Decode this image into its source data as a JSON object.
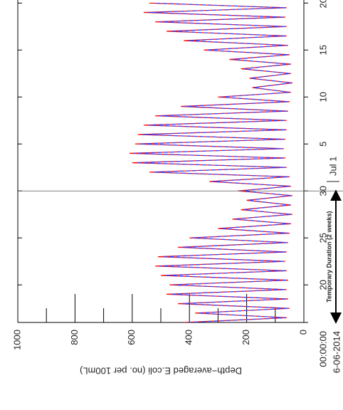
{
  "chart_data": {
    "type": "line",
    "ylabel": "Depth−averaged E.coli (no. per 100mL)",
    "x": [
      0,
      0.5,
      1,
      1.5,
      2,
      2.5,
      3,
      3.5,
      4,
      4.5,
      5,
      5.5,
      6,
      6.5,
      7,
      7.5,
      8,
      8.5,
      9,
      9.5,
      10,
      10.5,
      11,
      11.5,
      12,
      12.5,
      13,
      13.5,
      14,
      14.5,
      15,
      15.5,
      16,
      16.5,
      17,
      17.5,
      18,
      18.5,
      19,
      19.5,
      20,
      20.5,
      21,
      21.5,
      22,
      22.5,
      23,
      23.5,
      24,
      24.5,
      25,
      25.5,
      26,
      26.5,
      27,
      27.5,
      28,
      28.5,
      29,
      29.5,
      30,
      30.5,
      31,
      31.5,
      32,
      32.5,
      33,
      33.5,
      34
    ],
    "series": [
      {
        "color": "#ff0000",
        "linestyle": "solid",
        "values": [
          420,
          60,
          380,
          50,
          440,
          55,
          480,
          60,
          470,
          55,
          500,
          60,
          520,
          65,
          510,
          60,
          440,
          55,
          400,
          50,
          300,
          45,
          250,
          40,
          220,
          45,
          200,
          40,
          230,
          45,
          330,
          50,
          540,
          60,
          600,
          65,
          610,
          70,
          590,
          65,
          580,
          60,
          560,
          60,
          520,
          55,
          430,
          50,
          300,
          45,
          180,
          40,
          190,
          45,
          220,
          45,
          260,
          50,
          350,
          55,
          420,
          60,
          480,
          60,
          520,
          65,
          560,
          60,
          540
        ]
      },
      {
        "color": "#3344ff",
        "linestyle": "dashed",
        "values": [
          405,
          65,
          370,
          55,
          425,
          60,
          465,
          65,
          455,
          60,
          485,
          65,
          505,
          70,
          495,
          65,
          425,
          60,
          390,
          55,
          290,
          50,
          240,
          45,
          210,
          50,
          195,
          45,
          220,
          50,
          320,
          55,
          525,
          65,
          585,
          70,
          595,
          75,
          575,
          70,
          565,
          65,
          545,
          65,
          505,
          60,
          420,
          55,
          290,
          50,
          175,
          45,
          185,
          50,
          210,
          50,
          250,
          55,
          340,
          60,
          405,
          65,
          465,
          65,
          505,
          70,
          545,
          65,
          525
        ]
      }
    ],
    "xlim": [
      0,
      34.4
    ],
    "xticks": [
      {
        "value": 0,
        "label": "00:00:00"
      },
      {
        "value": 4,
        "label": "20"
      },
      {
        "value": 9,
        "label": "25"
      },
      {
        "value": 14,
        "label": "30"
      },
      {
        "value": 19,
        "label": "5"
      },
      {
        "value": 24,
        "label": "10"
      },
      {
        "value": 29,
        "label": "15"
      },
      {
        "value": 34,
        "label": "20"
      }
    ],
    "xstart_label": "6-06-2014",
    "ylim": [
      0,
      1000
    ],
    "yticks": [
      0,
      200,
      400,
      600,
      800,
      1000
    ],
    "yminorticks": [
      100,
      300,
      500,
      700,
      900
    ],
    "month_marker": {
      "value": 15,
      "label": "Jul 1"
    },
    "duration": {
      "start": 0,
      "end": 14,
      "label": "Temporary Duration (2 weeks)"
    },
    "rotated": true
  }
}
